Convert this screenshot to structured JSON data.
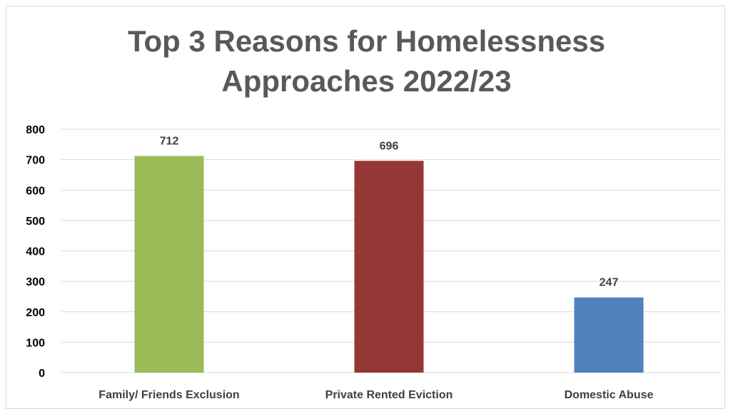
{
  "chart_data": {
    "type": "bar",
    "title_lines": [
      "Top 3 Reasons for Homelessness",
      "Approaches 2022/23"
    ],
    "title": "Top 3 Reasons for Homelessness Approaches 2022/23",
    "xlabel": "",
    "ylabel": "",
    "categories": [
      "Family/ Friends Exclusion",
      "Private Rented Eviction",
      "Domestic Abuse"
    ],
    "values": [
      712,
      696,
      247
    ],
    "data_labels": [
      "712",
      "696",
      "247"
    ],
    "bar_colors": [
      "#9bbb59",
      "#953735",
      "#4f81bd"
    ],
    "ylim": [
      0,
      800
    ],
    "yticks": [
      0,
      100,
      200,
      300,
      400,
      500,
      600,
      700,
      800
    ],
    "ytick_labels": [
      "0",
      "100",
      "200",
      "300",
      "400",
      "500",
      "600",
      "700",
      "800"
    ],
    "grid": true,
    "legend": "none"
  }
}
